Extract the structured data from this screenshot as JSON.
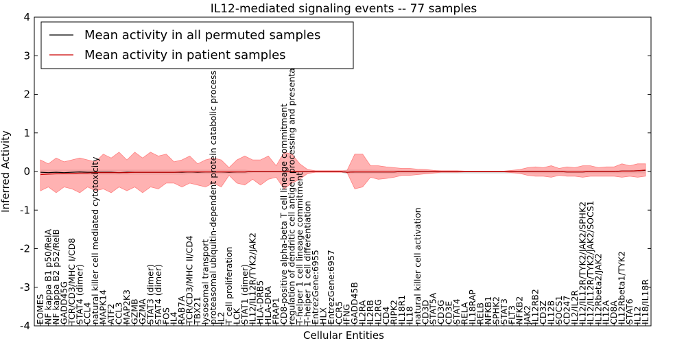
{
  "chart_data": {
    "type": "line",
    "title": "IL12-mediated signaling events -- 77 samples",
    "xlabel": "Cellular Entities",
    "ylabel": "Inferred Activity",
    "ylim": [
      -4,
      4
    ],
    "yticks": [
      -4,
      -3,
      -2,
      -1,
      0,
      1,
      2,
      3,
      4
    ],
    "legend": {
      "position": "top-left",
      "entries": [
        {
          "label": "Mean activity in all permuted samples",
          "color": "#000000"
        },
        {
          "label": "Mean activity in patient samples",
          "color": "#cc0000"
        }
      ]
    },
    "categories": [
      "EOMES",
      "NF kappa B1 p50/RelA",
      "NF kappa B2 p52/RelB",
      "GADD45G",
      "TCR/CD3/MHC I/CD8",
      "STAT4 (dimer)",
      "CCL4",
      "natural killer cell mediated cytotoxicity",
      "MAPK14",
      "ATF2",
      "CCL3",
      "MAP2K3",
      "GZMB",
      "GZMA",
      "STAT3 (dimer)",
      "STAT4 (dimer)",
      "FOS",
      "IL4",
      "RAB7A",
      "TCR/CD3/MHC II/CD4",
      "TBX21",
      "lysosomal transport",
      "proteasomal ubiquitin-dependent protein catabolic process",
      "IL2",
      "T cell proliferation",
      "LCK",
      "STAT1 (dimer)",
      "IL12/IL12R/TYK2/JAK2",
      "HLA-DRB5",
      "HLA-DRA",
      "FRAP1",
      "CD8-positive alpha-beta T cell lineage commitment",
      "regulation of dendritic cell antigen processing and presentation",
      "T-helper 1 cell lineage commitment",
      "T-helper 1 cell differentiation",
      "EntrezGene:6955",
      "HLX",
      "EntrezGene:6957",
      "CCR5",
      "IFNG",
      "GADD45B",
      "IL2RA",
      "IL2RB",
      "IL2RG",
      "CD4",
      "RIPK2",
      "IL18R1",
      "IL18",
      "natural killer cell activation",
      "CD3D",
      "STAT5A",
      "CD3G",
      "CD3E",
      "STAT4",
      "RELA",
      "IL18RAP",
      "RELB",
      "NFKB1",
      "SPHK2",
      "STAT3",
      "FLT3",
      "NFKB2",
      "JAK2",
      "IL12RB2",
      "CD3Z",
      "IL12B",
      "SOCS1",
      "CD247",
      "IL2/IL2R",
      "IL12/IL12R/TYK2/JAK2/SPHK2",
      "IL12/IL12R/TYK2/JAK2/SOCS1",
      "IL12Rbeta2/JAK2",
      "IL12A",
      "CD8A",
      "IL12Rbeta1/TYK2",
      "STAT6",
      "IL12",
      "IL18/IL18R"
    ],
    "series": [
      {
        "name": "Mean activity in all permuted samples",
        "color": "#000000",
        "values": [
          -0.02,
          -0.03,
          -0.02,
          -0.03,
          -0.02,
          -0.01,
          -0.02,
          -0.02,
          -0.02,
          -0.02,
          -0.03,
          -0.02,
          -0.02,
          -0.02,
          -0.02,
          -0.02,
          -0.02,
          -0.02,
          -0.02,
          -0.01,
          -0.02,
          -0.01,
          -0.01,
          -0.01,
          -0.02,
          -0.01,
          -0.01,
          0,
          0,
          0,
          0,
          0,
          0,
          0,
          0,
          0,
          0,
          0,
          0,
          -0.02,
          -0.01,
          -0.01,
          -0.01,
          -0.01,
          -0.01,
          -0.01,
          0,
          0,
          0,
          0,
          0,
          0,
          0,
          0,
          0,
          0,
          0,
          0,
          0,
          0,
          0,
          0,
          0,
          0,
          0,
          0,
          0,
          -0.01,
          -0.01,
          -0.01,
          0,
          0,
          0,
          0,
          0.01,
          0.01,
          0.02,
          0.03
        ]
      },
      {
        "name": "Mean activity in patient samples",
        "color": "#cc0000",
        "values": [
          -0.08,
          -0.07,
          -0.06,
          -0.05,
          -0.05,
          -0.04,
          -0.04,
          -0.03,
          -0.03,
          -0.03,
          -0.03,
          -0.03,
          -0.02,
          -0.02,
          -0.02,
          -0.02,
          -0.02,
          -0.02,
          -0.01,
          -0.01,
          -0.01,
          -0.01,
          -0.01,
          -0.01,
          -0.01,
          -0.01,
          -0.01,
          0,
          0,
          0,
          0,
          0,
          0,
          0,
          0,
          0,
          0,
          0,
          0,
          -0.02,
          -0.01,
          -0.01,
          -0.01,
          -0.01,
          -0.01,
          -0.01,
          0,
          0,
          0,
          0,
          0,
          0,
          0,
          0,
          0,
          0,
          0,
          0,
          0,
          0,
          0,
          0,
          0,
          0,
          0,
          0,
          0,
          -0.01,
          -0.01,
          -0.01,
          0,
          0,
          0,
          0,
          0.01,
          0.01,
          0.02,
          0.04
        ]
      }
    ],
    "patient_band": {
      "color": "#ff7f7f",
      "upper": [
        0.3,
        0.2,
        0.35,
        0.25,
        0.3,
        0.35,
        0.3,
        0.25,
        0.45,
        0.35,
        0.5,
        0.3,
        0.5,
        0.35,
        0.5,
        0.4,
        0.45,
        0.25,
        0.3,
        0.4,
        0.2,
        0.3,
        0.35,
        0.3,
        0.1,
        0.3,
        0.4,
        0.3,
        0.3,
        0.4,
        0.15,
        0.5,
        0.45,
        0.2,
        0.05,
        0.02,
        0.02,
        0.02,
        0.02,
        0.02,
        0.45,
        0.45,
        0.15,
        0.15,
        0.12,
        0.1,
        0.08,
        0.08,
        0.06,
        0.05,
        0.03,
        0.02,
        0.02,
        0.02,
        0.01,
        0.01,
        0.01,
        0.01,
        0.01,
        0.01,
        0.03,
        0.05,
        0.1,
        0.12,
        0.1,
        0.15,
        0.08,
        0.12,
        0.1,
        0.15,
        0.15,
        0.1,
        0.12,
        0.12,
        0.2,
        0.15,
        0.2,
        0.2
      ],
      "lower": [
        -0.5,
        -0.4,
        -0.55,
        -0.4,
        -0.45,
        -0.55,
        -0.4,
        -0.5,
        -0.45,
        -0.55,
        -0.4,
        -0.5,
        -0.4,
        -0.55,
        -0.4,
        -0.45,
        -0.3,
        -0.3,
        -0.4,
        -0.3,
        -0.35,
        -0.4,
        -0.3,
        -0.4,
        -0.1,
        -0.3,
        -0.35,
        -0.2,
        -0.35,
        -0.2,
        -0.15,
        -0.45,
        -0.3,
        -0.2,
        -0.05,
        -0.02,
        -0.02,
        -0.02,
        -0.02,
        -0.02,
        -0.45,
        -0.4,
        -0.15,
        -0.2,
        -0.18,
        -0.15,
        -0.1,
        -0.1,
        -0.08,
        -0.06,
        -0.04,
        -0.02,
        -0.02,
        -0.02,
        -0.01,
        -0.01,
        -0.01,
        -0.01,
        -0.01,
        -0.01,
        -0.03,
        -0.05,
        -0.1,
        -0.12,
        -0.12,
        -0.15,
        -0.1,
        -0.12,
        -0.12,
        -0.15,
        -0.12,
        -0.12,
        -0.12,
        -0.12,
        -0.15,
        -0.12,
        -0.15,
        -0.12
      ]
    },
    "permuted_band": {
      "color": "#b0b0b0",
      "upper": [
        0.05,
        0.05,
        0.05,
        0.05,
        0.05,
        0.05,
        0.05,
        0.05,
        0.05,
        0.05,
        0.05,
        0.05,
        0.05,
        0.05,
        0.05,
        0.05,
        0.05,
        0.05,
        0.05,
        0.05,
        0.05,
        0.05,
        0.05,
        0.05,
        0.05,
        0.05,
        0.05,
        0.02,
        0.02,
        0.02,
        0.02,
        0.02,
        0.02,
        0.02,
        0.02,
        0.01,
        0.01,
        0.01,
        0.01,
        0.05,
        0.05,
        0.05,
        0.05,
        0.04,
        0.04,
        0.04,
        0.03,
        0.03,
        0.03,
        0.03,
        0.02,
        0.02,
        0.02,
        0.02,
        0.01,
        0.01,
        0.01,
        0.01,
        0.01,
        0.01,
        0.02,
        0.02,
        0.03,
        0.03,
        0.03,
        0.03,
        0.03,
        0.03,
        0.03,
        0.03,
        0.03,
        0.03,
        0.03,
        0.03,
        0.04,
        0.04,
        0.05,
        0.05
      ],
      "lower": [
        -0.08,
        -0.08,
        -0.08,
        -0.08,
        -0.08,
        -0.08,
        -0.08,
        -0.08,
        -0.08,
        -0.08,
        -0.08,
        -0.08,
        -0.08,
        -0.08,
        -0.08,
        -0.08,
        -0.08,
        -0.08,
        -0.08,
        -0.07,
        -0.07,
        -0.07,
        -0.07,
        -0.07,
        -0.07,
        -0.07,
        -0.07,
        -0.03,
        -0.03,
        -0.03,
        -0.03,
        -0.03,
        -0.03,
        -0.03,
        -0.03,
        -0.01,
        -0.01,
        -0.01,
        -0.01,
        -0.07,
        -0.06,
        -0.06,
        -0.06,
        -0.06,
        -0.06,
        -0.06,
        -0.05,
        -0.05,
        -0.05,
        -0.05,
        -0.05,
        -0.05,
        -0.05,
        -0.05,
        -0.05,
        -0.05,
        -0.05,
        -0.05,
        -0.05,
        -0.05,
        -0.05,
        -0.05,
        -0.05,
        -0.05,
        -0.05,
        -0.05,
        -0.05,
        -0.05,
        -0.05,
        -0.05,
        -0.05,
        -0.05,
        -0.05,
        -0.05,
        -0.05,
        -0.05,
        -0.05,
        -0.05
      ]
    }
  }
}
